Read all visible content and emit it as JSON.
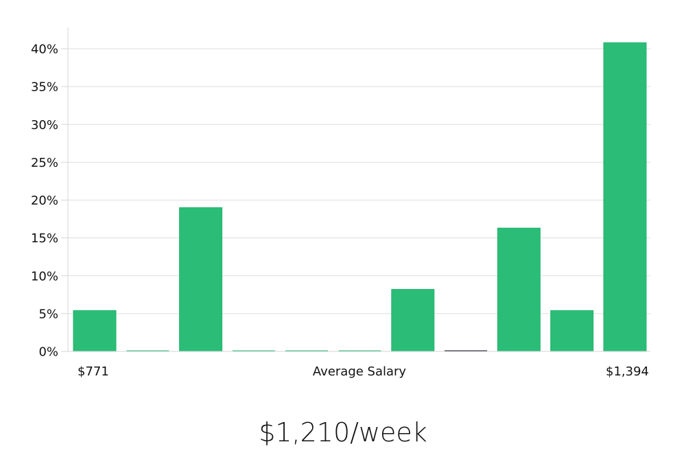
{
  "chart_data": {
    "type": "bar",
    "title": "",
    "xlabel": "Average Salary",
    "ylabel": "",
    "categories": [
      "$771",
      "",
      "",
      "",
      "",
      "",
      "",
      "",
      "",
      "",
      "$1,394"
    ],
    "x_tick_labels": {
      "left": "$771",
      "center": "Average Salary",
      "right": "$1,394"
    },
    "values": [
      5.4,
      0,
      19.0,
      0,
      0,
      0,
      8.2,
      0,
      16.3,
      5.4,
      40.8
    ],
    "unit": "%",
    "ylim": [
      0,
      42
    ],
    "yticks": [
      0,
      5,
      10,
      15,
      20,
      25,
      30,
      35,
      40
    ],
    "ytick_labels": [
      "0%",
      "5%",
      "10%",
      "15%",
      "20%",
      "25%",
      "30%",
      "35%",
      "40%"
    ],
    "grid": true,
    "legend": null,
    "bar_color": "#2bbd77",
    "zero_bar_colors": [
      "#2bbd77",
      "#2bbd77",
      "#2bbd77",
      "#2bbd77",
      "#111122"
    ]
  },
  "summary": {
    "average_salary_label": "$1,210/week"
  }
}
